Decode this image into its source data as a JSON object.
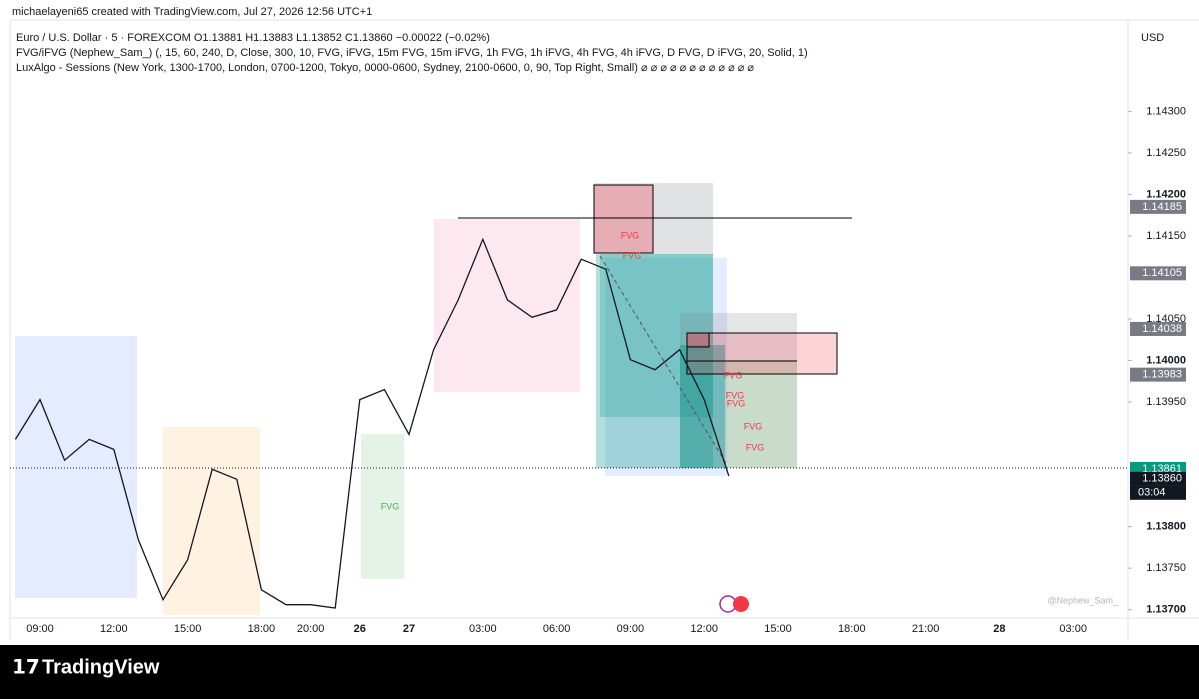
{
  "header": {
    "credit": "michaelayeni65 created with TradingView.com, Jul 27, 2026 12:56 UTC+1",
    "legend": [
      "Euro / U.S. Dollar · 5 · FOREXCOM  O1.13881  H1.13883  L1.13852  C1.13860  −0.00022 (−0.02%)",
      "FVG/iFVG (Nephew_Sam_) (, 15, 60, 240, D, Close, 300, 10, FVG, iFVG, 15m FVG, 15m iFVG, 1h FVG, 1h iFVG, 4h FVG, 4h iFVG, D FVG, D iFVG, 20, Solid, 1)",
      "LuxAlgo - Sessions (New York, 1300-1700, London, 0700-1200, Tokyo, 0000-0600, Sydney, 2100-0600, 0, 90, Top Right, Small)  ⌀ ⌀ ⌀ ⌀ ⌀ ⌀ ⌀ ⌀ ⌀ ⌀ ⌀ ⌀"
    ],
    "currency": "USD"
  },
  "chart_data": {
    "type": "line",
    "color": "#131722",
    "categories": [
      null,
      "09:00",
      null,
      null,
      "12:00",
      null,
      null,
      "15:00",
      null,
      null,
      "18:00",
      null,
      "20:00",
      null,
      "26",
      null,
      "27",
      null,
      null,
      "03:00",
      null,
      null,
      "06:00",
      null,
      null,
      "09:00",
      null,
      null,
      "12:00",
      null,
      null,
      "15:00",
      null,
      null,
      "18:00",
      null,
      null,
      "21:00",
      null,
      null,
      "28",
      null,
      null,
      "03:00",
      null
    ],
    "values": [
      1.13905,
      1.13953,
      1.1388,
      1.13905,
      1.13893,
      1.13784,
      1.13712,
      1.1376,
      1.13869,
      1.13857,
      1.13724,
      1.13706,
      1.13706,
      1.13702,
      1.13953,
      1.13965,
      1.13911,
      1.14013,
      1.14073,
      1.14146,
      1.14073,
      1.14052,
      1.14061,
      1.14122,
      1.1411,
      1.14001,
      1.13989,
      1.14013,
      1.13953,
      1.13861,
      null,
      null,
      null,
      null,
      null,
      null,
      null,
      null,
      null,
      null,
      null,
      null,
      null,
      null,
      null
    ],
    "ylim": [
      1.1369,
      1.1441
    ],
    "yticks": [
      {
        "value": 1.143,
        "label": "1.14300"
      },
      {
        "value": 1.1425,
        "label": "1.14250"
      },
      {
        "value": 1.142,
        "label": "1.14200"
      },
      {
        "value": 1.1415,
        "label": "1.14150"
      },
      {
        "value": 1.1405,
        "label": "1.14050"
      },
      {
        "value": 1.14,
        "label": "1.14000"
      },
      {
        "value": 1.1395,
        "label": "1.13950"
      },
      {
        "value": 1.138,
        "label": "1.13800"
      },
      {
        "value": 1.1375,
        "label": "1.13750"
      },
      {
        "value": 1.137,
        "label": "1.13700"
      }
    ],
    "price_tags": [
      {
        "value": 1.14185,
        "label": "1.14185",
        "color": "#787b86"
      },
      {
        "value": 1.14105,
        "label": "1.14105",
        "color": "#787b86"
      },
      {
        "value": 1.14038,
        "label": "1.14038",
        "color": "#787b86"
      },
      {
        "value": 1.13983,
        "label": "1.13983",
        "color": "#787b86"
      },
      {
        "value": 1.13861,
        "label": "1.13861",
        "color": "#089981"
      },
      {
        "value": 1.13861,
        "label": "1.13861",
        "color": "#089981"
      },
      {
        "value": 1.1386,
        "label": "1.13860",
        "color": "#131722"
      }
    ],
    "countdown": "03:04",
    "annotations": [
      "FVG",
      "FVG",
      "FVG",
      "FVG",
      "FVG",
      "FVG",
      "FVG",
      "FVG"
    ],
    "watermark": "@Nephew_Sam_"
  },
  "footer": {
    "brand": "TradingView"
  }
}
